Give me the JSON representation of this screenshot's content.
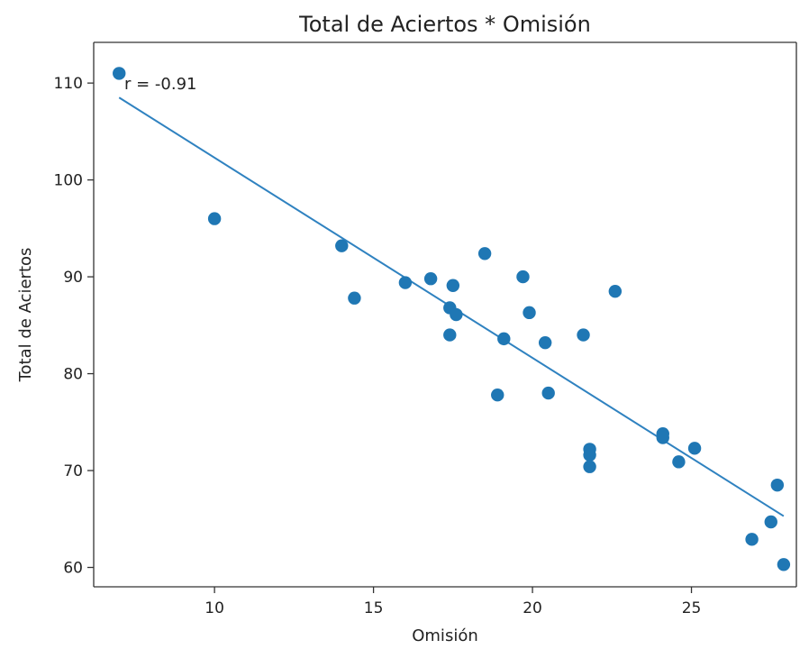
{
  "chart_data": {
    "type": "scatter",
    "title": "Total de Aciertos * Omisión",
    "xlabel": "Omisión",
    "ylabel": "Total de Aciertos",
    "xlim": [
      6.2,
      28.3
    ],
    "ylim": [
      58.0,
      114.2
    ],
    "xticks": [
      10,
      15,
      20,
      25
    ],
    "yticks": [
      60,
      70,
      80,
      90,
      100,
      110
    ],
    "grid": false,
    "legend": "none",
    "annotation": "r = -0.91",
    "colors": {
      "points": "#1f77b4",
      "fit_line": "#2f82c0",
      "axes": "#333333"
    },
    "points": [
      {
        "x": 7.0,
        "y": 111.0
      },
      {
        "x": 10.0,
        "y": 96.0
      },
      {
        "x": 14.0,
        "y": 93.2
      },
      {
        "x": 14.4,
        "y": 87.8
      },
      {
        "x": 16.0,
        "y": 89.4
      },
      {
        "x": 16.8,
        "y": 89.8
      },
      {
        "x": 17.4,
        "y": 86.8
      },
      {
        "x": 17.4,
        "y": 84.0
      },
      {
        "x": 17.5,
        "y": 89.1
      },
      {
        "x": 17.6,
        "y": 86.1
      },
      {
        "x": 18.5,
        "y": 92.4
      },
      {
        "x": 18.9,
        "y": 77.8
      },
      {
        "x": 19.1,
        "y": 83.6
      },
      {
        "x": 19.7,
        "y": 90.0
      },
      {
        "x": 19.9,
        "y": 86.3
      },
      {
        "x": 20.4,
        "y": 83.2
      },
      {
        "x": 20.5,
        "y": 78.0
      },
      {
        "x": 21.6,
        "y": 84.0
      },
      {
        "x": 21.8,
        "y": 72.2
      },
      {
        "x": 21.8,
        "y": 71.6
      },
      {
        "x": 21.8,
        "y": 70.4
      },
      {
        "x": 22.6,
        "y": 88.5
      },
      {
        "x": 24.1,
        "y": 73.8
      },
      {
        "x": 24.1,
        "y": 73.4
      },
      {
        "x": 24.6,
        "y": 70.9
      },
      {
        "x": 25.1,
        "y": 72.3
      },
      {
        "x": 26.9,
        "y": 62.9
      },
      {
        "x": 27.5,
        "y": 64.7
      },
      {
        "x": 27.7,
        "y": 68.5
      },
      {
        "x": 27.9,
        "y": 60.3
      }
    ],
    "fit_line": {
      "x": [
        7.0,
        27.9
      ],
      "y": [
        108.5,
        65.3
      ]
    }
  }
}
